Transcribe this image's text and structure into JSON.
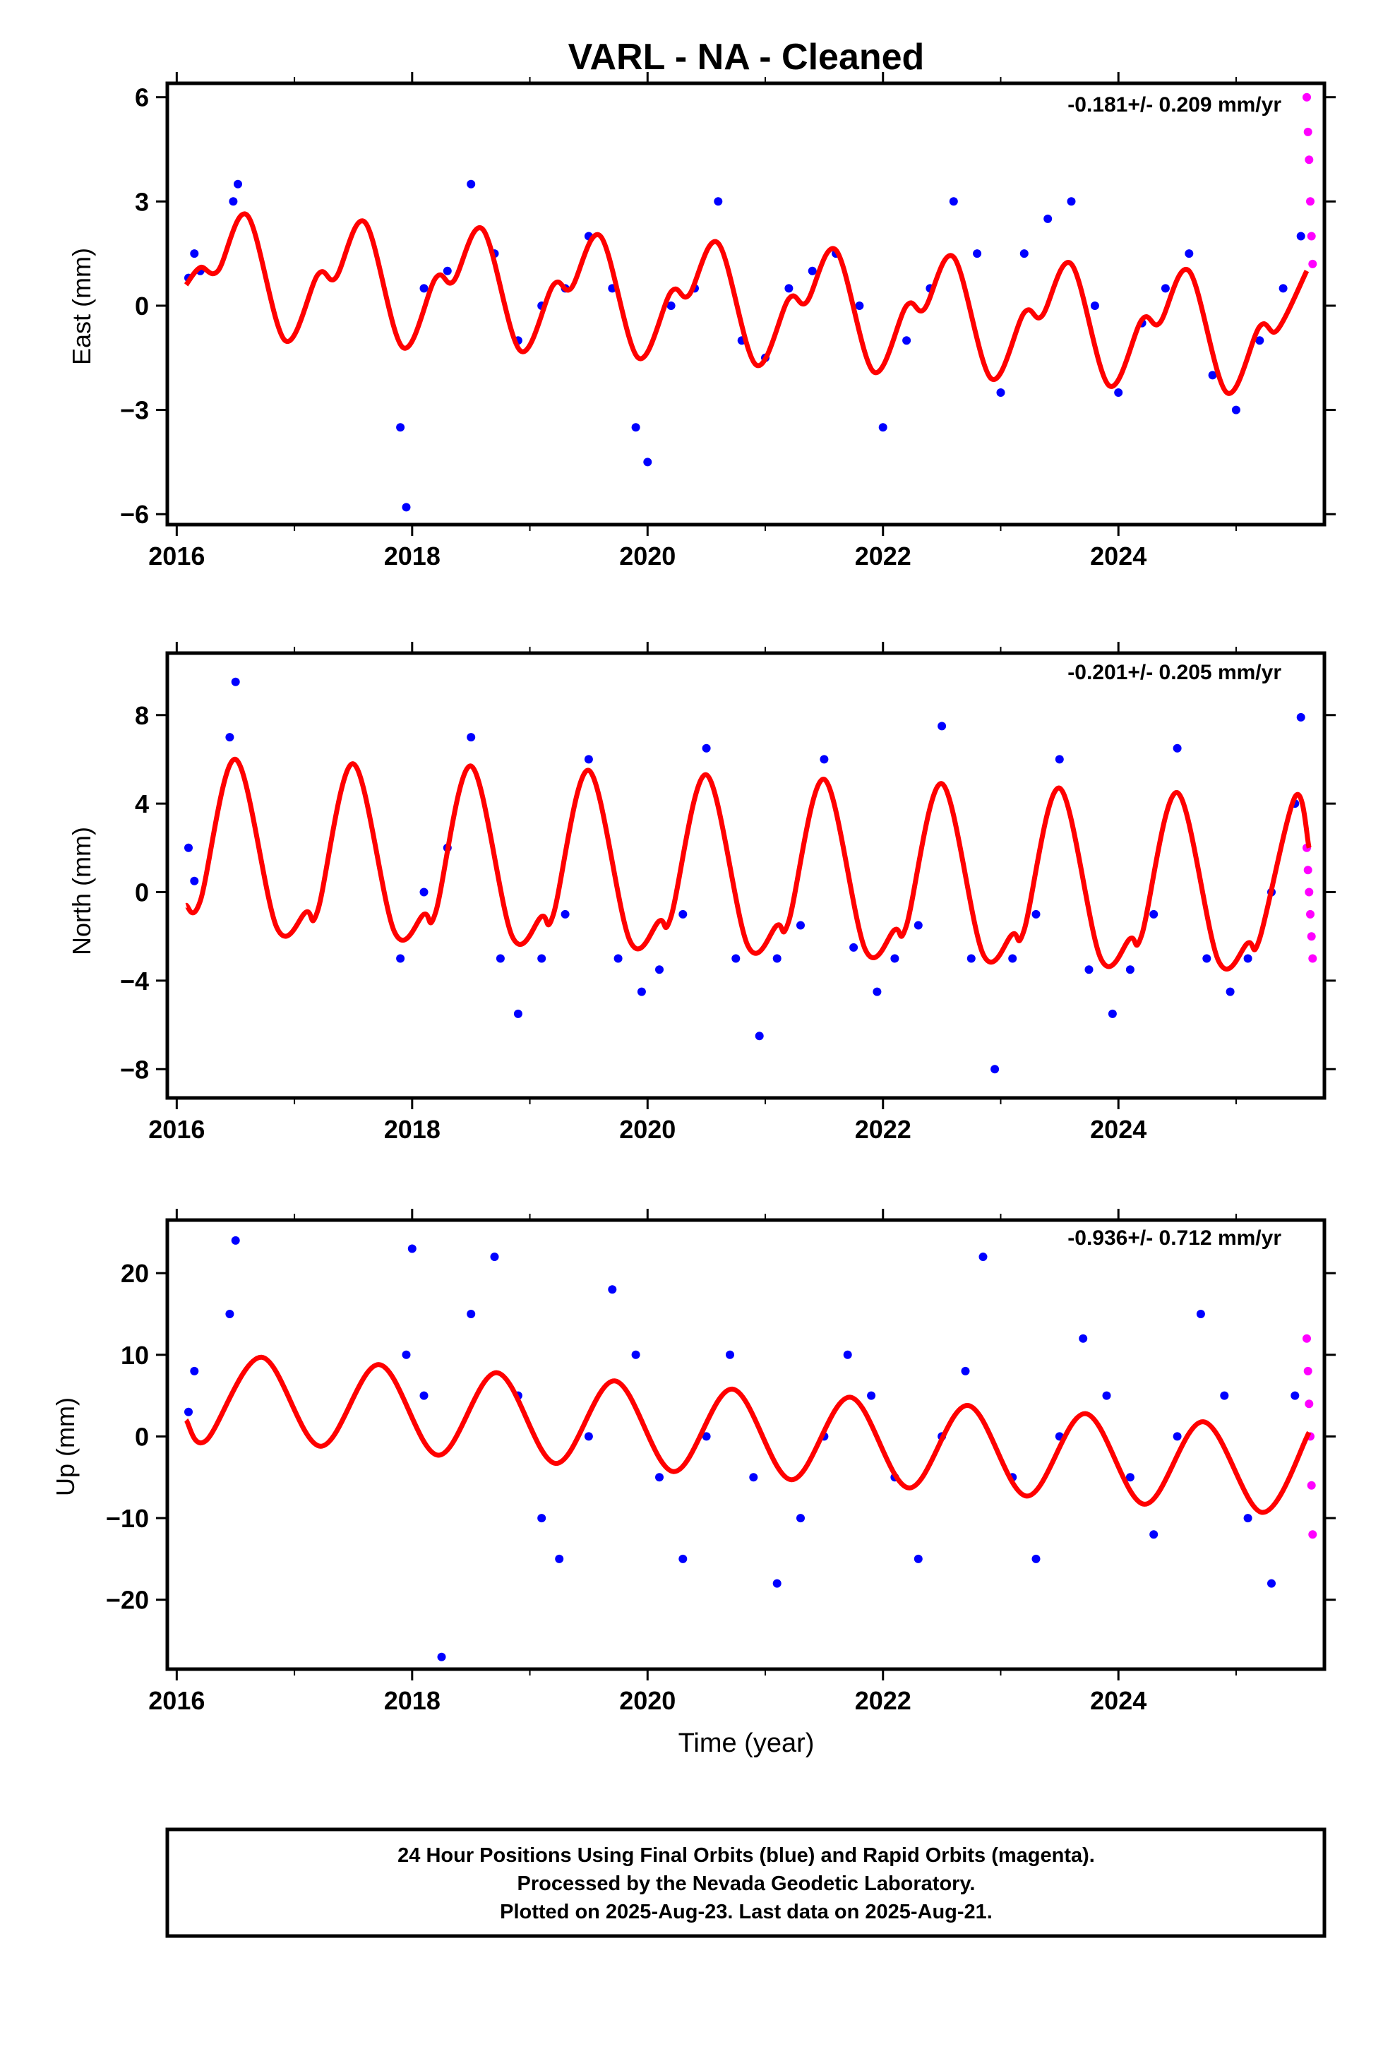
{
  "title": "VARL  - NA - Cleaned",
  "xlabel": "Time (year)",
  "footer": [
    "24 Hour Positions Using Final Orbits (blue) and Rapid Orbits (magenta).",
    "Processed by the Nevada Geodetic Laboratory.",
    "Plotted on 2025-Aug-23. Last data on 2025-Aug-21."
  ],
  "colors": {
    "final": "#0000ff",
    "rapid": "#ff00ff",
    "model": "#ff0000",
    "frame": "#000000"
  },
  "chart_data": [
    {
      "type": "scatter",
      "ylabel": "East (mm)",
      "rate_label": "-0.181+/- 0.209 mm/yr",
      "xlim": [
        2015.92,
        2025.75
      ],
      "ylim": [
        -6.3,
        6.4
      ],
      "xticks": [
        2016,
        2018,
        2020,
        2022,
        2024
      ],
      "yticks": [
        -6,
        -3,
        0,
        3,
        6
      ],
      "yticklabels": [
        "−6",
        "−3",
        "0",
        "3",
        "6"
      ],
      "series": [
        {
          "name": "Final Orbits",
          "x": [
            2016.1,
            2016.15,
            2016.2,
            2016.48,
            2016.52,
            2017.9,
            2017.95,
            2018.1,
            2018.3,
            2018.5,
            2018.7,
            2018.9,
            2019.1,
            2019.3,
            2019.5,
            2019.7,
            2019.9,
            2020.0,
            2020.2,
            2020.4,
            2020.6,
            2020.8,
            2021.0,
            2021.2,
            2021.4,
            2021.6,
            2021.8,
            2022.0,
            2022.2,
            2022.4,
            2022.6,
            2022.8,
            2023.0,
            2023.2,
            2023.4,
            2023.6,
            2023.8,
            2024.0,
            2024.2,
            2024.4,
            2024.6,
            2024.8,
            2025.0,
            2025.2,
            2025.4,
            2025.55
          ],
          "y": [
            0.8,
            1.5,
            1.0,
            3.0,
            3.5,
            -3.5,
            -5.8,
            0.5,
            1.0,
            3.5,
            1.5,
            -1.0,
            0.0,
            0.5,
            2.0,
            0.5,
            -3.5,
            -4.5,
            0.0,
            0.5,
            3.0,
            -1.0,
            -1.5,
            0.5,
            1.0,
            1.5,
            0.0,
            -3.5,
            -1.0,
            0.5,
            3.0,
            1.5,
            -2.5,
            1.5,
            2.5,
            3.0,
            0.0,
            -2.5,
            -0.5,
            0.5,
            1.5,
            -2.0,
            -3.0,
            -1.0,
            0.5,
            2.0
          ]
        },
        {
          "name": "Rapid Orbits",
          "x": [
            2025.6,
            2025.61,
            2025.62,
            2025.63,
            2025.64,
            2025.65
          ],
          "y": [
            6.0,
            5.0,
            4.2,
            3.0,
            2.0,
            1.2
          ]
        }
      ],
      "model": {
        "name": "Model",
        "x": [
          2016.08,
          2016.2,
          2016.35,
          2016.6,
          2016.92,
          2017.2,
          2017.35,
          2017.6,
          2017.92,
          2018.2,
          2018.35,
          2018.6,
          2018.92,
          2019.2,
          2019.35,
          2019.6,
          2019.92,
          2020.2,
          2020.35,
          2020.6,
          2020.92,
          2021.2,
          2021.35,
          2021.6,
          2021.92,
          2022.2,
          2022.35,
          2022.6,
          2022.92,
          2023.2,
          2023.35,
          2023.6,
          2023.92,
          2024.2,
          2024.35,
          2024.6,
          2024.92,
          2025.2,
          2025.35,
          2025.6
        ],
        "y": [
          0.6,
          1.1,
          1.0,
          2.6,
          -1.0,
          0.9,
          0.8,
          2.4,
          -1.2,
          0.8,
          0.7,
          2.2,
          -1.3,
          0.6,
          0.5,
          2.0,
          -1.5,
          0.4,
          0.3,
          1.8,
          -1.7,
          0.2,
          0.1,
          1.6,
          -1.9,
          0.0,
          -0.1,
          1.4,
          -2.1,
          -0.2,
          -0.3,
          1.2,
          -2.3,
          -0.4,
          -0.5,
          1.0,
          -2.5,
          -0.6,
          -0.7,
          1.0
        ]
      }
    },
    {
      "type": "scatter",
      "ylabel": "North (mm)",
      "rate_label": "-0.201+/- 0.205 mm/yr",
      "xlim": [
        2015.92,
        2025.75
      ],
      "ylim": [
        -9.3,
        10.8
      ],
      "xticks": [
        2016,
        2018,
        2020,
        2022,
        2024
      ],
      "yticks": [
        -8,
        -4,
        0,
        4,
        8
      ],
      "yticklabels": [
        "−8",
        "−4",
        "0",
        "4",
        "8"
      ],
      "series": [
        {
          "name": "Final Orbits",
          "x": [
            2016.1,
            2016.15,
            2016.45,
            2016.5,
            2017.9,
            2018.1,
            2018.3,
            2018.5,
            2018.75,
            2018.9,
            2019.1,
            2019.3,
            2019.5,
            2019.75,
            2019.95,
            2020.1,
            2020.3,
            2020.5,
            2020.75,
            2020.95,
            2021.1,
            2021.3,
            2021.5,
            2021.75,
            2021.95,
            2022.1,
            2022.3,
            2022.5,
            2022.75,
            2022.95,
            2023.1,
            2023.3,
            2023.5,
            2023.75,
            2023.95,
            2024.1,
            2024.3,
            2024.5,
            2024.75,
            2024.95,
            2025.1,
            2025.3,
            2025.5,
            2025.55
          ],
          "y": [
            2.0,
            0.5,
            7.0,
            9.5,
            -3.0,
            0.0,
            2.0,
            7.0,
            -3.0,
            -5.5,
            -3.0,
            -1.0,
            6.0,
            -3.0,
            -4.5,
            -3.5,
            -1.0,
            6.5,
            -3.0,
            -6.5,
            -3.0,
            -1.5,
            6.0,
            -2.5,
            -4.5,
            -3.0,
            -1.5,
            7.5,
            -3.0,
            -8.0,
            -3.0,
            -1.0,
            6.0,
            -3.5,
            -5.5,
            -3.5,
            -1.0,
            6.5,
            -3.0,
            -4.5,
            -3.0,
            0.0,
            4.0,
            7.9
          ]
        },
        {
          "name": "Rapid Orbits",
          "x": [
            2025.6,
            2025.61,
            2025.62,
            2025.63,
            2025.64,
            2025.65
          ],
          "y": [
            2.0,
            1.0,
            0.0,
            -1.0,
            -2.0,
            -3.0
          ]
        }
      ],
      "model": {
        "name": "Model",
        "x": [
          2016.08,
          2016.2,
          2016.5,
          2016.85,
          2017.1,
          2017.2,
          2017.5,
          2017.85,
          2018.1,
          2018.2,
          2018.5,
          2018.85,
          2019.1,
          2019.2,
          2019.5,
          2019.85,
          2020.1,
          2020.2,
          2020.5,
          2020.85,
          2021.1,
          2021.2,
          2021.5,
          2021.85,
          2022.1,
          2022.2,
          2022.5,
          2022.85,
          2023.1,
          2023.2,
          2023.5,
          2023.85,
          2024.1,
          2024.2,
          2024.5,
          2024.85,
          2025.1,
          2025.2,
          2025.5,
          2025.62
        ],
        "y": [
          -0.6,
          -0.4,
          6.0,
          -1.6,
          -0.9,
          -0.8,
          5.8,
          -1.8,
          -1.0,
          -0.9,
          5.7,
          -2.0,
          -1.1,
          -1.0,
          5.5,
          -2.2,
          -1.3,
          -1.1,
          5.3,
          -2.4,
          -1.5,
          -1.3,
          5.1,
          -2.6,
          -1.7,
          -1.5,
          4.9,
          -2.8,
          -1.9,
          -1.7,
          4.7,
          -3.0,
          -2.1,
          -1.9,
          4.5,
          -3.1,
          -2.3,
          -2.1,
          4.3,
          2.0
        ]
      }
    },
    {
      "type": "scatter",
      "ylabel": "Up (mm)",
      "rate_label": "-0.936+/- 0.712 mm/yr",
      "xlim": [
        2015.92,
        2025.75
      ],
      "ylim": [
        -28.5,
        26.5
      ],
      "xticks": [
        2016,
        2018,
        2020,
        2022,
        2024
      ],
      "yticks": [
        -20,
        -10,
        0,
        10,
        20
      ],
      "yticklabels": [
        "−20",
        "−10",
        "0",
        "10",
        "20"
      ],
      "series": [
        {
          "name": "Final Orbits",
          "x": [
            2016.1,
            2016.15,
            2016.45,
            2016.5,
            2017.95,
            2018.0,
            2018.1,
            2018.25,
            2018.5,
            2018.7,
            2018.9,
            2019.1,
            2019.25,
            2019.5,
            2019.7,
            2019.9,
            2020.1,
            2020.3,
            2020.5,
            2020.7,
            2020.9,
            2021.1,
            2021.3,
            2021.5,
            2021.7,
            2021.9,
            2022.1,
            2022.3,
            2022.5,
            2022.7,
            2022.85,
            2023.1,
            2023.3,
            2023.5,
            2023.7,
            2023.9,
            2024.1,
            2024.3,
            2024.5,
            2024.7,
            2024.9,
            2025.1,
            2025.3,
            2025.5
          ],
          "y": [
            3.0,
            8.0,
            15.0,
            24.0,
            10.0,
            23.0,
            5.0,
            -27.0,
            15.0,
            22.0,
            5.0,
            -10.0,
            -15.0,
            0.0,
            18.0,
            10.0,
            -5.0,
            -15.0,
            0.0,
            10.0,
            -5.0,
            -18.0,
            -10.0,
            0.0,
            10.0,
            5.0,
            -5.0,
            -15.0,
            0.0,
            8.0,
            22.0,
            -5.0,
            -15.0,
            0.0,
            12.0,
            5.0,
            -5.0,
            -12.0,
            0.0,
            15.0,
            5.0,
            -10.0,
            -18.0,
            5.0
          ]
        },
        {
          "name": "Rapid Orbits",
          "x": [
            2025.6,
            2025.61,
            2025.62,
            2025.63,
            2025.64,
            2025.65
          ],
          "y": [
            12.0,
            8.0,
            4.0,
            0.0,
            -6.0,
            -12.0
          ]
        }
      ],
      "model": {
        "name": "Model",
        "x": [
          2016.08,
          2016.25,
          2016.72,
          2017.22,
          2017.72,
          2018.22,
          2018.72,
          2019.22,
          2019.72,
          2020.22,
          2020.72,
          2021.22,
          2021.72,
          2022.22,
          2022.72,
          2023.22,
          2023.72,
          2024.22,
          2024.72,
          2025.22,
          2025.62
        ],
        "y": [
          2.0,
          -0.5,
          9.7,
          -1.2,
          8.8,
          -2.3,
          7.8,
          -3.3,
          6.8,
          -4.3,
          5.8,
          -5.3,
          4.8,
          -6.3,
          3.8,
          -7.3,
          2.8,
          -8.3,
          1.8,
          -9.3,
          0.5
        ]
      }
    }
  ]
}
